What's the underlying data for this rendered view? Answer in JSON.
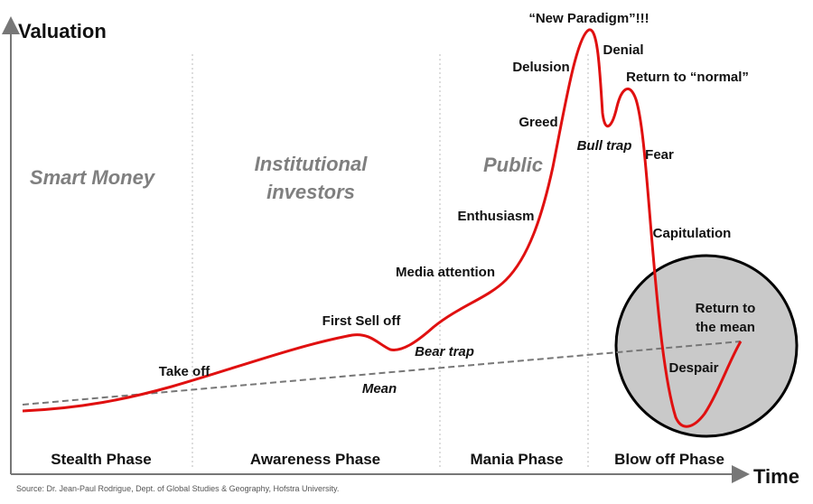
{
  "axes": {
    "y_label": "Valuation",
    "x_label": "Time"
  },
  "groups": [
    {
      "lines": [
        "Smart Money"
      ]
    },
    {
      "lines": [
        "Institutional",
        "investors"
      ]
    },
    {
      "lines": [
        "Public"
      ]
    }
  ],
  "phases": [
    "Stealth Phase",
    "Awareness Phase",
    "Mania Phase",
    "Blow off Phase"
  ],
  "annotations": [
    "Take off",
    "First Sell off",
    "Bear trap",
    "Mean",
    "Media attention",
    "Enthusiasm",
    "Greed",
    "Delusion",
    "“New Paradigm”!!!",
    "Denial",
    "Return to “normal”",
    "Bull trap",
    "Fear",
    "Capitulation",
    "Return to the mean",
    "Despair"
  ],
  "return_to_mean_lines": [
    "Return to",
    "the mean"
  ],
  "source": "Source: Dr. Jean-Paul Rodrigue, Dept. of Global Studies & Geography, Hofstra University."
}
